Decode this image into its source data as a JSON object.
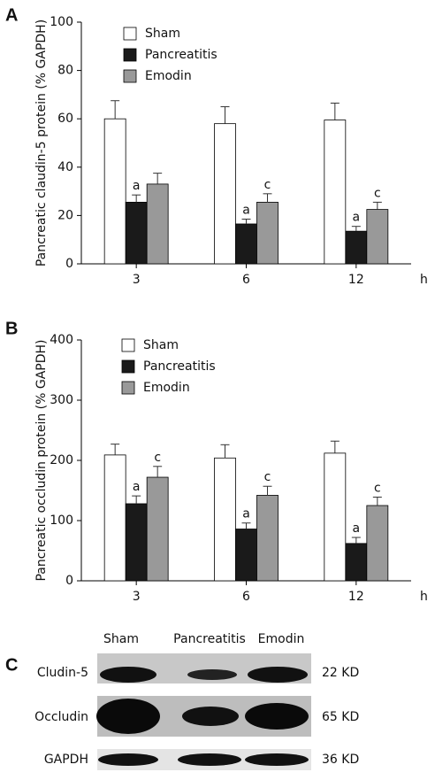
{
  "chart_data": [
    {
      "type": "bar",
      "panel_label": "A",
      "ylabel": "Pancreatic claudin-5 protein (% GAPDH)",
      "xlabel": "h",
      "categories": [
        "3",
        "6",
        "12"
      ],
      "series": [
        {
          "name": "Sham",
          "color": "#ffffff",
          "values": [
            60,
            58,
            59.5
          ],
          "errors": [
            7.5,
            7,
            7
          ],
          "annotations": [
            null,
            null,
            null
          ]
        },
        {
          "name": "Pancreatitis",
          "color": "#1a1a1a",
          "values": [
            25.5,
            16.5,
            13.5
          ],
          "errors": [
            3,
            2,
            2
          ],
          "annotations": [
            "a",
            "a",
            "a"
          ]
        },
        {
          "name": "Emodin",
          "color": "#999999",
          "values": [
            33,
            25.5,
            22.5
          ],
          "errors": [
            4.5,
            3.5,
            3
          ],
          "annotations": [
            null,
            "c",
            "c"
          ]
        }
      ],
      "ylim": [
        0,
        100
      ],
      "yticks": [
        0,
        20,
        40,
        60,
        80,
        100
      ]
    },
    {
      "type": "bar",
      "panel_label": "B",
      "ylabel": "Pancreatic occludin protein (% GAPDH)",
      "xlabel": "h",
      "categories": [
        "3",
        "6",
        "12"
      ],
      "series": [
        {
          "name": "Sham",
          "color": "#ffffff",
          "values": [
            209,
            204,
            212
          ],
          "errors": [
            18,
            22,
            20
          ],
          "annotations": [
            null,
            null,
            null
          ]
        },
        {
          "name": "Pancreatitis",
          "color": "#1a1a1a",
          "values": [
            128,
            86,
            62
          ],
          "errors": [
            13,
            10,
            10
          ],
          "annotations": [
            "a",
            "a",
            "a"
          ]
        },
        {
          "name": "Emodin",
          "color": "#999999",
          "values": [
            172,
            142,
            125
          ],
          "errors": [
            18,
            15,
            14
          ],
          "annotations": [
            "c",
            "c",
            "c"
          ]
        }
      ],
      "ylim": [
        0,
        400
      ],
      "yticks": [
        0,
        100,
        200,
        300,
        400
      ]
    }
  ],
  "blot": {
    "panel_label": "C",
    "columns": [
      "Sham",
      "Pancreatitis",
      "Emodin"
    ],
    "rows": [
      {
        "label": "Cludin-5",
        "size": "22 KD"
      },
      {
        "label": "Occludin",
        "size": "65 KD"
      },
      {
        "label": "GAPDH",
        "size": "36 KD"
      }
    ]
  }
}
